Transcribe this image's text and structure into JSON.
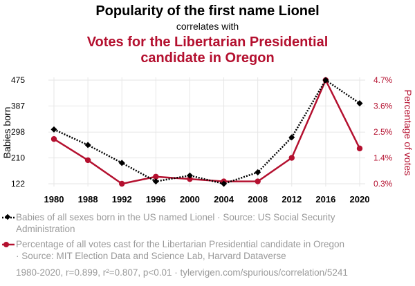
{
  "title": "Popularity of the first name Lionel",
  "subtitle": "correlates with",
  "title2_line1": "Votes for the Libertarian Presidential",
  "title2_line2": "candidate in Oregon",
  "colors": {
    "series1": "#000000",
    "series2": "#b4102f",
    "grid": "#e6e6e6",
    "muted": "#9a9a9a"
  },
  "chart_data": {
    "type": "line",
    "x": [
      1980,
      1988,
      1992,
      1996,
      2000,
      2004,
      2008,
      2012,
      2016,
      2020
    ],
    "xlabels": [
      "1980",
      "1988",
      "1992",
      "1996",
      "2000",
      "2004",
      "2008",
      "2012",
      "2016",
      "2020"
    ],
    "series": [
      {
        "name": "Babies born",
        "axis": "left",
        "style": "dotted",
        "marker": "diamond",
        "values": [
          307,
          254,
          193,
          130,
          150,
          122,
          161,
          280,
          475,
          396
        ]
      },
      {
        "name": "Percentage of votes",
        "axis": "right",
        "style": "solid",
        "marker": "circle",
        "values": [
          2.2,
          1.3,
          0.3,
          0.6,
          0.5,
          0.4,
          0.4,
          1.4,
          4.7,
          1.8
        ]
      }
    ],
    "y_left": {
      "label": "Babies born",
      "ticks": [
        122,
        210,
        298,
        387,
        475
      ],
      "range": [
        122,
        475
      ]
    },
    "y_right": {
      "label": "Percentage of votes",
      "ticks": [
        "0.3%",
        "1.4%",
        "2.5%",
        "3.6%",
        "4.7%"
      ],
      "tick_values": [
        0.3,
        1.4,
        2.5,
        3.6,
        4.7
      ],
      "range": [
        0.3,
        4.7
      ]
    }
  },
  "legend": {
    "item1_line1": "Babies of all sexes born in the US named Lionel · Source: US Social Security",
    "item1_line2": "Administration",
    "item2_line1": "Percentage of all votes cast for the Libertarian Presidential candidate in Oregon",
    "item2_line2": "· Source: MIT Election Data and Science Lab, Harvard Dataverse"
  },
  "footer": "1980-2020, r=0.899, r²=0.807, p<0.01 · tylervigen.com/spurious/correlation/5241"
}
